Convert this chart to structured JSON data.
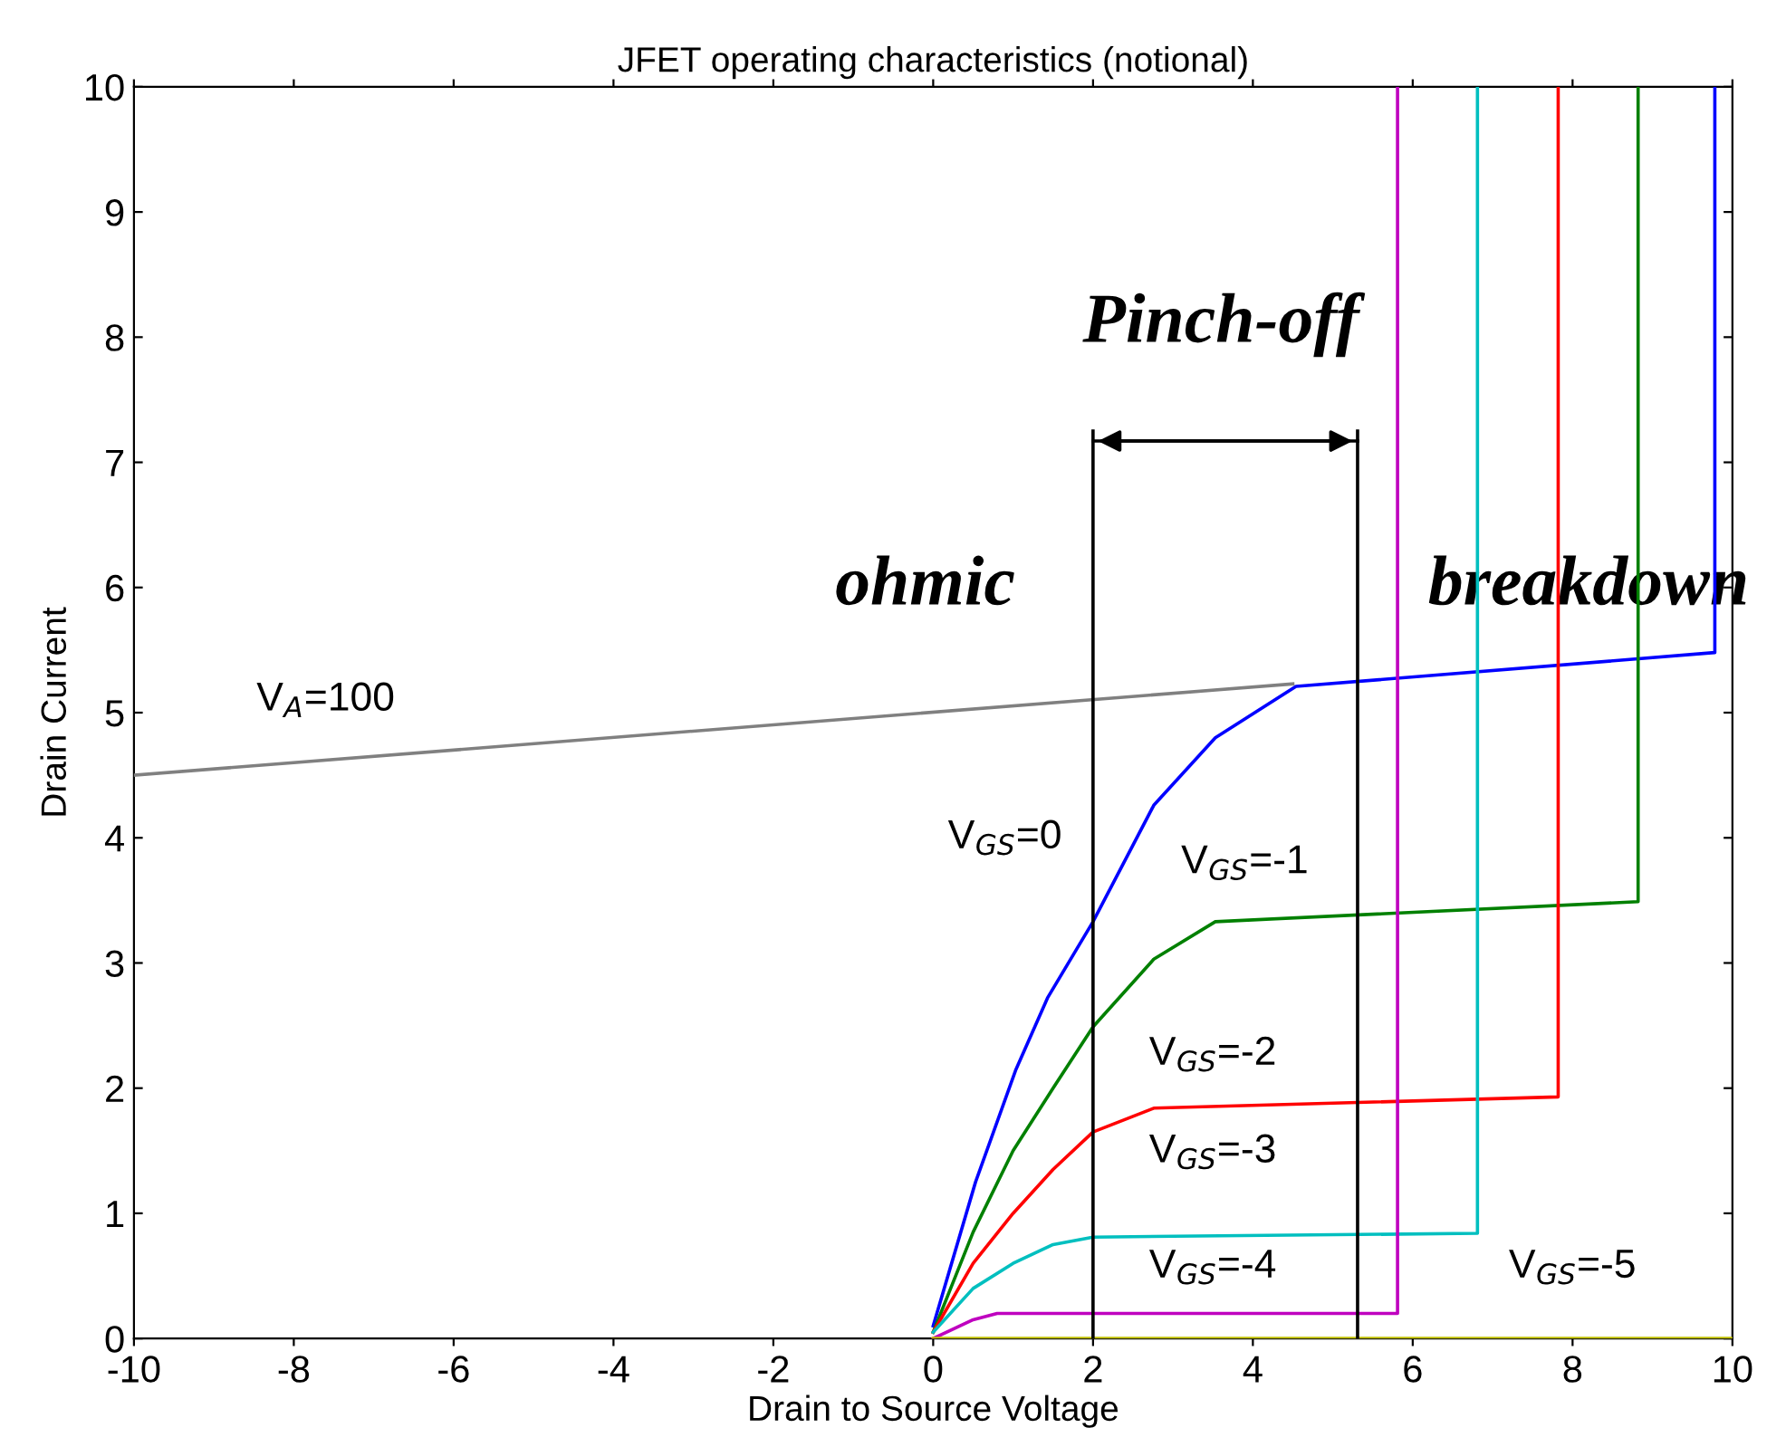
{
  "chart_data": {
    "type": "line",
    "title": "JFET operating characteristics (notional)",
    "xlabel": "Drain to Source Voltage",
    "ylabel": "Drain Current",
    "xlim": [
      -10,
      10
    ],
    "ylim": [
      0,
      10
    ],
    "xticks": [
      -10,
      -8,
      -6,
      -4,
      -2,
      0,
      2,
      4,
      6,
      8,
      10
    ],
    "yticks": [
      0,
      1,
      2,
      3,
      4,
      5,
      6,
      7,
      8,
      9,
      10
    ],
    "grid": false,
    "legend": false,
    "marker": "none",
    "line_style": "solid",
    "series": [
      {
        "color": "#808080",
        "x": [
          -10,
          4.5
        ],
        "values": [
          4.5,
          5.23
        ]
      },
      {
        "color": "#0000ff",
        "x": [
          0,
          0.53,
          1.03,
          1.43,
          2,
          2.76,
          3.53,
          4.54,
          9.78,
          9.78
        ],
        "values": [
          0.1,
          1.25,
          2.14,
          2.72,
          3.33,
          4.26,
          4.8,
          5.21,
          5.48,
          10
        ]
      },
      {
        "color": "#008000",
        "x": [
          0,
          0.5,
          1.0,
          1.5,
          2,
          2.76,
          3.53,
          8.82,
          8.82
        ],
        "values": [
          0.05,
          0.85,
          1.5,
          2.0,
          2.49,
          3.03,
          3.33,
          3.49,
          10
        ]
      },
      {
        "color": "#ff0000",
        "x": [
          0,
          0.5,
          1.0,
          1.5,
          2,
          2.76,
          7.82,
          7.82
        ],
        "values": [
          0.05,
          0.6,
          1.0,
          1.35,
          1.65,
          1.84,
          1.93,
          10
        ]
      },
      {
        "color": "#00bfbf",
        "x": [
          0,
          0.5,
          1.0,
          1.5,
          2,
          6.81,
          6.81
        ],
        "values": [
          0.05,
          0.4,
          0.6,
          0.75,
          0.81,
          0.84,
          10
        ]
      },
      {
        "color": "#bf00bf",
        "x": [
          0,
          0.5,
          0.8,
          5.81,
          5.81
        ],
        "values": [
          0,
          0.15,
          0.2,
          0.2,
          10
        ]
      },
      {
        "color": "#bfbf00",
        "x": [
          0,
          10
        ],
        "values": [
          0,
          0
        ]
      },
      {
        "color": "#000000",
        "x": [
          2,
          2
        ],
        "values": [
          0,
          7.25
        ]
      },
      {
        "color": "#000000",
        "x": [
          5.31,
          5.31
        ],
        "values": [
          0,
          7.25
        ]
      },
      {
        "color": "#000000",
        "x": [
          2,
          5.31
        ],
        "values": [
          7.17,
          7.17
        ]
      }
    ],
    "annotations": [
      "Pinch-off",
      "ohmic",
      "breakdown",
      "V$_{A}$=100",
      "V$_{GS}$=0",
      "V$_{GS}$=-1",
      "V$_{GS}$=-2",
      "V$_{GS}$=-3",
      "V$_{GS}$=-4",
      "V$_{GS}$=-5"
    ]
  }
}
